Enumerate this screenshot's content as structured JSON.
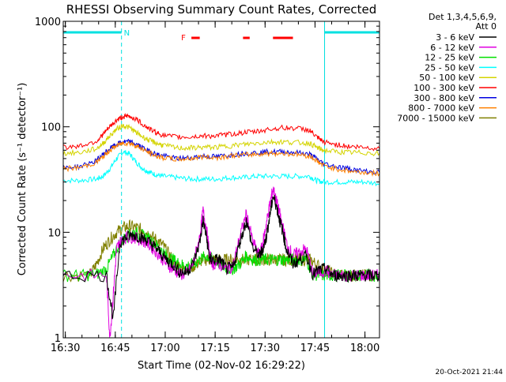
{
  "chart_data": {
    "type": "line",
    "title": "RHESSI Observing Summary Count Rates, Corrected",
    "xlabel": "Start Time (02-Nov-02 16:29:22)",
    "ylabel": "Corrected Count Rate (s⁻¹ detector⁻¹)",
    "yscale": "log",
    "ylim": [
      1,
      1000
    ],
    "xlim_minutes": [
      0,
      95
    ],
    "x_tick_labels": [
      "16:30",
      "16:45",
      "17:00",
      "17:15",
      "17:30",
      "17:45",
      "18:00"
    ],
    "x_tick_minutes": [
      0.63,
      15.63,
      30.63,
      45.63,
      60.63,
      75.63,
      90.63
    ],
    "y_tick_labels": [
      "1",
      "10",
      "100",
      "1000"
    ],
    "y_tick_values": [
      1,
      10,
      100,
      1000
    ],
    "legend_header": [
      "Det 1,3,4,5,6,9,",
      "Att 0"
    ],
    "legend_position": "right",
    "footer_stamp": "20-Oct-2021 21:44",
    "series": [
      {
        "name": "3 - 6 keV",
        "color": "#000000",
        "x": [
          0,
          13,
          15,
          17,
          19,
          21,
          23,
          25,
          27,
          29,
          31,
          33,
          35,
          37,
          39,
          41,
          42,
          43,
          44,
          45,
          47,
          49,
          51,
          53,
          55,
          57,
          59,
          60,
          61,
          62,
          63,
          64,
          65,
          66,
          67,
          69,
          71,
          73,
          75,
          77,
          79,
          81,
          83,
          85,
          87,
          89,
          91,
          93,
          95
        ],
        "y": [
          3.9,
          3.9,
          1.5,
          8,
          9,
          9.5,
          9,
          8.5,
          7.5,
          6.5,
          5.5,
          5,
          4.2,
          4.2,
          5,
          8,
          13,
          9,
          5.5,
          5.5,
          5.5,
          4.5,
          4.6,
          8,
          13,
          7,
          6,
          7,
          9,
          14,
          22,
          18,
          13,
          10,
          7,
          5,
          5.5,
          6,
          4,
          4.4,
          4.5,
          3.9,
          3.9,
          3.9,
          3.9,
          3.9,
          3.9,
          3.9,
          3.9
        ]
      },
      {
        "name": "6 - 12 keV",
        "color": "#e000e0",
        "x": [
          0,
          13,
          14,
          15,
          16,
          17,
          19,
          21,
          23,
          25,
          27,
          29,
          31,
          33,
          35,
          37,
          39,
          41,
          42,
          43,
          44,
          45,
          47,
          49,
          51,
          53,
          55,
          57,
          59,
          60,
          61,
          62,
          63,
          64,
          65,
          66,
          67,
          69,
          71,
          73,
          75,
          77,
          79,
          81,
          83,
          85,
          87,
          89,
          91,
          93,
          95
        ],
        "y": [
          3.9,
          3.9,
          1,
          2.5,
          7,
          8,
          9,
          9,
          8.5,
          8,
          7,
          6,
          5,
          4.5,
          4,
          4,
          5,
          9,
          16,
          11,
          6,
          5,
          5,
          4.5,
          4.8,
          9,
          15,
          8,
          6,
          8,
          12,
          18,
          26,
          20,
          15,
          11,
          8,
          6,
          6.5,
          7,
          4,
          4.2,
          4.3,
          3.9,
          3.9,
          3.9,
          3.9,
          3.9,
          3.9,
          3.9,
          3.9
        ]
      },
      {
        "name": "12 - 25 keV",
        "color": "#00e000",
        "x": [
          0,
          6,
          10,
          13,
          15,
          17,
          19,
          21,
          23,
          25,
          27,
          29,
          31,
          33,
          35,
          37,
          39,
          41,
          43,
          45,
          47,
          49,
          51,
          53,
          55,
          57,
          59,
          61,
          63,
          65,
          67,
          69,
          71,
          73,
          75,
          77,
          79,
          81,
          83,
          85,
          87,
          89,
          91,
          93,
          95
        ],
        "y": [
          3.9,
          3.9,
          4,
          4.5,
          6,
          8,
          9,
          10,
          9.5,
          9,
          8,
          7,
          6,
          5.5,
          5,
          4.8,
          5,
          5.5,
          6,
          5.5,
          5,
          4.5,
          4.5,
          5,
          6,
          5.5,
          5.5,
          5.5,
          5.5,
          5.5,
          5.5,
          5.5,
          5.5,
          5.5,
          4,
          3.9,
          3.9,
          3.9,
          3.9,
          3.9,
          3.9,
          3.9,
          3.9,
          3.9,
          3.9
        ]
      },
      {
        "name": "25 - 50 keV",
        "color": "#00ffff",
        "x": [
          0,
          5,
          10,
          12,
          14,
          16,
          18,
          20,
          22,
          24,
          26,
          28,
          30,
          34,
          38,
          42,
          46,
          50,
          54,
          58,
          62,
          66,
          70,
          74,
          76,
          78,
          82,
          86,
          90,
          95
        ],
        "y": [
          31,
          31,
          32,
          34,
          40,
          50,
          58,
          55,
          46,
          40,
          37,
          35,
          34,
          33,
          32,
          32,
          32,
          33,
          33,
          34,
          34,
          34,
          34,
          34,
          31,
          30,
          30,
          30,
          30,
          29
        ]
      },
      {
        "name": "50 - 100 keV",
        "color": "#d4d400",
        "x": [
          0,
          5,
          10,
          12,
          14,
          16,
          18,
          20,
          22,
          24,
          26,
          28,
          30,
          34,
          38,
          42,
          46,
          50,
          54,
          58,
          62,
          66,
          70,
          74,
          76,
          78,
          82,
          86,
          90,
          95
        ],
        "y": [
          56,
          57,
          62,
          70,
          82,
          95,
          103,
          98,
          88,
          80,
          74,
          70,
          67,
          63,
          63,
          64,
          64,
          66,
          68,
          70,
          72,
          72,
          71,
          70,
          64,
          60,
          58,
          57,
          57,
          56
        ]
      },
      {
        "name": "100 - 300 keV",
        "color": "#ff0000",
        "x": [
          0,
          5,
          10,
          12,
          14,
          16,
          18,
          20,
          22,
          24,
          26,
          28,
          30,
          34,
          38,
          42,
          46,
          50,
          54,
          58,
          62,
          66,
          70,
          74,
          76,
          78,
          82,
          86,
          90,
          95
        ],
        "y": [
          64,
          66,
          73,
          85,
          100,
          115,
          125,
          125,
          118,
          105,
          95,
          88,
          83,
          80,
          80,
          82,
          82,
          85,
          88,
          90,
          95,
          98,
          97,
          93,
          80,
          72,
          68,
          65,
          64,
          62
        ]
      },
      {
        "name": "300 - 800 keV",
        "color": "#0000e0",
        "x": [
          0,
          5,
          10,
          12,
          14,
          16,
          18,
          20,
          22,
          24,
          26,
          28,
          30,
          34,
          38,
          42,
          46,
          50,
          54,
          58,
          62,
          66,
          70,
          74,
          76,
          78,
          82,
          86,
          90,
          95
        ],
        "y": [
          41,
          42,
          48,
          55,
          62,
          68,
          72,
          72,
          68,
          63,
          58,
          55,
          53,
          50,
          51,
          53,
          52,
          54,
          56,
          57,
          58,
          58,
          57,
          55,
          50,
          45,
          42,
          40,
          38,
          37
        ]
      },
      {
        "name": "800 - 7000 keV",
        "color": "#ff8000",
        "x": [
          0,
          5,
          10,
          12,
          14,
          16,
          18,
          20,
          22,
          24,
          26,
          28,
          30,
          34,
          38,
          42,
          46,
          50,
          54,
          58,
          62,
          66,
          70,
          74,
          76,
          78,
          82,
          86,
          90,
          95
        ],
        "y": [
          40,
          41,
          46,
          52,
          60,
          66,
          70,
          70,
          66,
          61,
          56,
          53,
          51,
          49,
          50,
          52,
          51,
          53,
          54,
          55,
          56,
          56,
          55,
          53,
          48,
          43,
          40,
          38,
          37,
          36
        ]
      },
      {
        "name": "7000 - 15000 keV",
        "color": "#808000",
        "x": [
          0,
          8,
          10,
          12,
          14,
          16,
          18,
          20,
          22,
          24,
          26,
          28,
          30,
          32,
          34,
          36,
          38,
          40,
          42,
          44,
          46,
          48,
          50,
          52,
          54,
          56,
          58,
          60,
          62,
          64,
          66,
          68,
          70,
          72,
          74,
          76,
          78,
          80,
          82,
          84,
          86,
          88,
          90,
          92,
          95
        ],
        "y": [
          3.9,
          3.9,
          5,
          7,
          8.5,
          10,
          11,
          11.5,
          11,
          10.5,
          9.5,
          8.5,
          7.5,
          6,
          5,
          4.5,
          4.5,
          5,
          5.5,
          5.5,
          5.5,
          5.5,
          5.5,
          5.5,
          5.5,
          5.5,
          5.5,
          5.5,
          5.5,
          5.5,
          5.5,
          5.5,
          5.5,
          5.5,
          5.5,
          5,
          4.5,
          4.2,
          4,
          3.9,
          3.9,
          3.9,
          3.9,
          3.9,
          3.9
        ]
      }
    ],
    "annotations": {
      "night_bars_label": "N",
      "night_bars": [
        [
          0,
          17.5
        ],
        [
          78.5,
          95
        ]
      ],
      "night_bar_color": "#00e0e0",
      "flare_label": "F",
      "flare_segments": [
        [
          38.5,
          41
        ],
        [
          54,
          56
        ],
        [
          63,
          69
        ]
      ],
      "flare_color": "#ff0000",
      "vertical_markers": [
        {
          "x": 17.5,
          "style": "dashed"
        },
        {
          "x": 78.5,
          "style": "solid"
        },
        {
          "x": 95,
          "style": "dashed"
        }
      ],
      "marker_color": "#00e0e0"
    }
  }
}
